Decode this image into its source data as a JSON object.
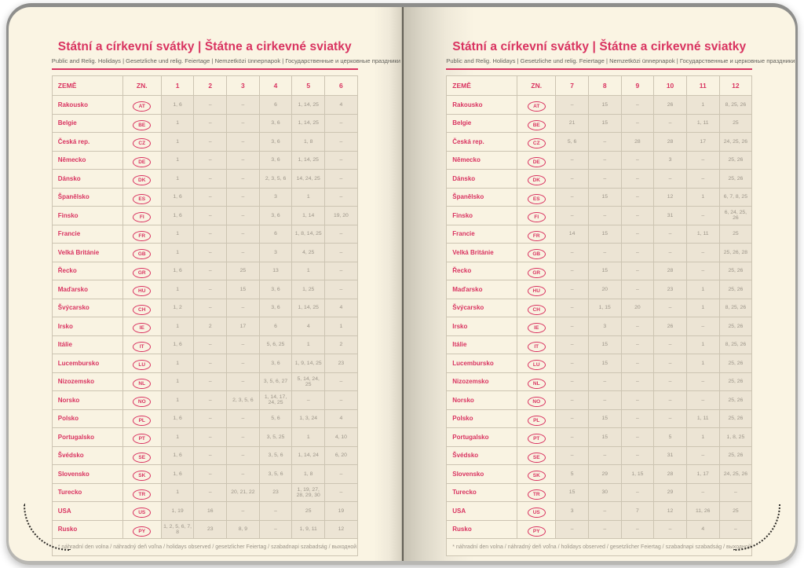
{
  "page": {
    "title": "Státní a církevní svátky | Štátne a cirkevné sviatky",
    "subtitle": "Public and Relig. Holidays | Gesetzliche und relig. Feiertage | Nemzetközi ünnepnapok | Государственные и церковные праздники"
  },
  "footnote": "* náhradní den volna / náhradný deň voľna / holidays observed / gesetzlicher Feiertag / szabadnapi szabadság / выходной день",
  "colors": {
    "accent_pink": "#d93360",
    "page_cream": "#faf4e3",
    "cell_shade": "#ece4d4",
    "data_text": "#9b9488"
  },
  "tables": [
    {
      "name": "january-june",
      "headers": [
        "ZEMĚ",
        "ZN.",
        "1",
        "2",
        "3",
        "4",
        "5",
        "6"
      ],
      "rows": [
        {
          "country": "Rakousko",
          "code": "AT",
          "values": [
            "1, 6",
            "–",
            "–",
            "6",
            "1, 14, 25",
            "4"
          ]
        },
        {
          "country": "Belgie",
          "code": "BE",
          "values": [
            "1",
            "–",
            "–",
            "3, 6",
            "1, 14, 25",
            "–"
          ]
        },
        {
          "country": "Česká rep.",
          "code": "CZ",
          "values": [
            "1",
            "–",
            "–",
            "3, 6",
            "1, 8",
            "–"
          ]
        },
        {
          "country": "Německo",
          "code": "DE",
          "values": [
            "1",
            "–",
            "–",
            "3, 6",
            "1, 14, 25",
            "–"
          ]
        },
        {
          "country": "Dánsko",
          "code": "DK",
          "values": [
            "1",
            "–",
            "–",
            "2, 3, 5, 6",
            "14, 24, 25",
            "–"
          ]
        },
        {
          "country": "Španělsko",
          "code": "ES",
          "values": [
            "1, 6",
            "–",
            "–",
            "3",
            "1",
            "–"
          ]
        },
        {
          "country": "Finsko",
          "code": "FI",
          "values": [
            "1, 6",
            "–",
            "–",
            "3, 6",
            "1, 14",
            "19, 20"
          ]
        },
        {
          "country": "Francie",
          "code": "FR",
          "values": [
            "1",
            "–",
            "–",
            "6",
            "1, 8, 14, 25",
            "–"
          ]
        },
        {
          "country": "Velká Británie",
          "code": "GB",
          "values": [
            "1",
            "–",
            "–",
            "3",
            "4, 25",
            "–"
          ]
        },
        {
          "country": "Řecko",
          "code": "GR",
          "values": [
            "1, 6",
            "–",
            "25",
            "13",
            "1",
            "–"
          ]
        },
        {
          "country": "Maďarsko",
          "code": "HU",
          "values": [
            "1",
            "–",
            "15",
            "3, 6",
            "1, 25",
            "–"
          ]
        },
        {
          "country": "Švýcarsko",
          "code": "CH",
          "values": [
            "1, 2",
            "–",
            "–",
            "3, 6",
            "1, 14, 25",
            "4"
          ]
        },
        {
          "country": "Irsko",
          "code": "IE",
          "values": [
            "1",
            "2",
            "17",
            "6",
            "4",
            "1"
          ]
        },
        {
          "country": "Itálie",
          "code": "IT",
          "values": [
            "1, 6",
            "–",
            "–",
            "5, 6, 25",
            "1",
            "2"
          ]
        },
        {
          "country": "Lucembursko",
          "code": "LU",
          "values": [
            "1",
            "–",
            "–",
            "3, 6",
            "1, 9, 14, 25",
            "23"
          ]
        },
        {
          "country": "Nizozemsko",
          "code": "NL",
          "values": [
            "1",
            "–",
            "–",
            "3, 5, 6, 27",
            "5, 14, 24, 25",
            "–"
          ]
        },
        {
          "country": "Norsko",
          "code": "NO",
          "values": [
            "1",
            "–",
            "2, 3, 5, 6",
            "1, 14, 17, 24, 25",
            "–",
            "–"
          ]
        },
        {
          "country": "Polsko",
          "code": "PL",
          "values": [
            "1, 6",
            "–",
            "–",
            "5, 6",
            "1, 3, 24",
            "4"
          ]
        },
        {
          "country": "Portugalsko",
          "code": "PT",
          "values": [
            "1",
            "–",
            "–",
            "3, 5, 25",
            "1",
            "4, 10"
          ]
        },
        {
          "country": "Švédsko",
          "code": "SE",
          "values": [
            "1, 6",
            "–",
            "–",
            "3, 5, 6",
            "1, 14, 24",
            "6, 20"
          ]
        },
        {
          "country": "Slovensko",
          "code": "SK",
          "values": [
            "1, 6",
            "–",
            "–",
            "3, 5, 6",
            "1, 8",
            "–"
          ]
        },
        {
          "country": "Turecko",
          "code": "TR",
          "values": [
            "1",
            "–",
            "20, 21, 22",
            "23",
            "1, 19, 27, 28, 29, 30",
            "–"
          ]
        },
        {
          "country": "USA",
          "code": "US",
          "values": [
            "1, 19",
            "16",
            "–",
            "–",
            "25",
            "19"
          ]
        },
        {
          "country": "Rusko",
          "code": "PY",
          "values": [
            "1, 2, 5, 6, 7, 8",
            "23",
            "8, 9",
            "–",
            "1, 9, 11",
            "12"
          ]
        }
      ]
    },
    {
      "name": "july-december",
      "headers": [
        "ZEMĚ",
        "ZN.",
        "7",
        "8",
        "9",
        "10",
        "11",
        "12"
      ],
      "rows": [
        {
          "country": "Rakousko",
          "code": "AT",
          "values": [
            "–",
            "15",
            "–",
            "26",
            "1",
            "8, 25, 26"
          ]
        },
        {
          "country": "Belgie",
          "code": "BE",
          "values": [
            "21",
            "15",
            "–",
            "–",
            "1, 11",
            "25"
          ]
        },
        {
          "country": "Česká rep.",
          "code": "CZ",
          "values": [
            "5, 6",
            "–",
            "28",
            "28",
            "17",
            "24, 25, 26"
          ]
        },
        {
          "country": "Německo",
          "code": "DE",
          "values": [
            "–",
            "–",
            "–",
            "3",
            "–",
            "25, 26"
          ]
        },
        {
          "country": "Dánsko",
          "code": "DK",
          "values": [
            "–",
            "–",
            "–",
            "–",
            "–",
            "25, 26"
          ]
        },
        {
          "country": "Španělsko",
          "code": "ES",
          "values": [
            "–",
            "15",
            "–",
            "12",
            "1",
            "6, 7, 8, 25"
          ]
        },
        {
          "country": "Finsko",
          "code": "FI",
          "values": [
            "–",
            "–",
            "–",
            "31",
            "–",
            "6, 24, 25, 26"
          ]
        },
        {
          "country": "Francie",
          "code": "FR",
          "values": [
            "14",
            "15",
            "–",
            "–",
            "1, 11",
            "25"
          ]
        },
        {
          "country": "Velká Británie",
          "code": "GB",
          "values": [
            "–",
            "–",
            "–",
            "–",
            "–",
            "25, 26, 28"
          ]
        },
        {
          "country": "Řecko",
          "code": "GR",
          "values": [
            "–",
            "15",
            "–",
            "28",
            "–",
            "25, 26"
          ]
        },
        {
          "country": "Maďarsko",
          "code": "HU",
          "values": [
            "–",
            "20",
            "–",
            "23",
            "1",
            "25, 26"
          ]
        },
        {
          "country": "Švýcarsko",
          "code": "CH",
          "values": [
            "–",
            "1, 15",
            "20",
            "–",
            "1",
            "8, 25, 26"
          ]
        },
        {
          "country": "Irsko",
          "code": "IE",
          "values": [
            "–",
            "3",
            "–",
            "26",
            "–",
            "25, 26"
          ]
        },
        {
          "country": "Itálie",
          "code": "IT",
          "values": [
            "–",
            "15",
            "–",
            "–",
            "1",
            "8, 25, 26"
          ]
        },
        {
          "country": "Lucembursko",
          "code": "LU",
          "values": [
            "–",
            "15",
            "–",
            "–",
            "1",
            "25, 26"
          ]
        },
        {
          "country": "Nizozemsko",
          "code": "NL",
          "values": [
            "–",
            "–",
            "–",
            "–",
            "–",
            "25, 26"
          ]
        },
        {
          "country": "Norsko",
          "code": "NO",
          "values": [
            "–",
            "–",
            "–",
            "–",
            "–",
            "25, 26"
          ]
        },
        {
          "country": "Polsko",
          "code": "PL",
          "values": [
            "–",
            "15",
            "–",
            "–",
            "1, 11",
            "25, 26"
          ]
        },
        {
          "country": "Portugalsko",
          "code": "PT",
          "values": [
            "–",
            "15",
            "–",
            "5",
            "1",
            "1, 8, 25"
          ]
        },
        {
          "country": "Švédsko",
          "code": "SE",
          "values": [
            "–",
            "–",
            "–",
            "31",
            "–",
            "25, 26"
          ]
        },
        {
          "country": "Slovensko",
          "code": "SK",
          "values": [
            "5",
            "29",
            "1, 15",
            "28",
            "1, 17",
            "24, 25, 26"
          ]
        },
        {
          "country": "Turecko",
          "code": "TR",
          "values": [
            "15",
            "30",
            "–",
            "29",
            "–",
            "–"
          ]
        },
        {
          "country": "USA",
          "code": "US",
          "values": [
            "3",
            "–",
            "7",
            "12",
            "11, 26",
            "25"
          ]
        },
        {
          "country": "Rusko",
          "code": "PY",
          "values": [
            "–",
            "–",
            "–",
            "–",
            "4",
            "–"
          ]
        }
      ]
    }
  ]
}
